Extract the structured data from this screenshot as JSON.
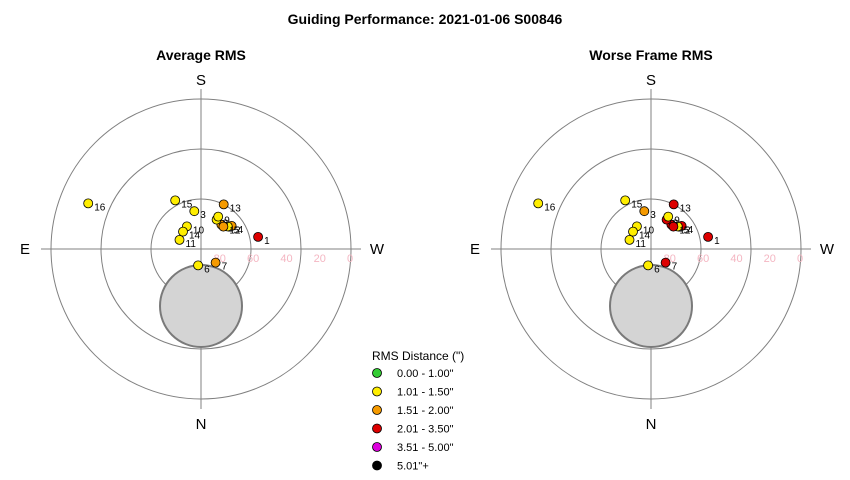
{
  "page_title": "Guiding Performance: 2021-01-06 S00846",
  "directions": {
    "top": "S",
    "bottom": "N",
    "left": "E",
    "right": "W"
  },
  "legend": {
    "title": "RMS Distance (\")",
    "entries": [
      {
        "label": "0.00 - 1.00\"",
        "color": "#33cc33"
      },
      {
        "label": "1.01 - 1.50\"",
        "color": "#ffee00"
      },
      {
        "label": "1.51 - 2.00\"",
        "color": "#f59a00"
      },
      {
        "label": "2.01 - 3.50\"",
        "color": "#dd0000"
      },
      {
        "label": "3.51 - 5.00\"",
        "color": "#dd00dd"
      },
      {
        "label": "5.01\"+",
        "color": "#000000"
      }
    ]
  },
  "chart_data": [
    {
      "type": "scatter",
      "title": "Average RMS",
      "r_axis": {
        "ticks": [
          "0",
          "20",
          "40",
          "60",
          "80"
        ],
        "range": [
          0,
          90
        ]
      },
      "points": [
        {
          "label": "1",
          "az": 258,
          "alt": 55,
          "color": "#dd0000"
        },
        {
          "label": "2",
          "az": 220,
          "alt": 71,
          "color": "#f59a00"
        },
        {
          "label": "3",
          "az": 170,
          "alt": 67,
          "color": "#ffee00"
        },
        {
          "label": "4",
          "az": 233,
          "alt": 67,
          "color": "#f59a00"
        },
        {
          "label": "5",
          "az": 230,
          "alt": 69,
          "color": "#ffee00"
        },
        {
          "label": "6",
          "az": 10,
          "alt": 80,
          "color": "#ffee00"
        },
        {
          "label": "7",
          "az": 313,
          "alt": 78,
          "color": "#f59a00"
        },
        {
          "label": "8",
          "az": 208,
          "alt": 70,
          "color": "#ffee00"
        },
        {
          "label": "9",
          "az": 208,
          "alt": 68,
          "color": "#ffee00"
        },
        {
          "label": "10",
          "az": 148,
          "alt": 74,
          "color": "#ffee00"
        },
        {
          "label": "11",
          "az": 113,
          "alt": 76,
          "color": "#ffee00"
        },
        {
          "label": "12",
          "az": 225,
          "alt": 71,
          "color": "#f59a00"
        },
        {
          "label": "13",
          "az": 207,
          "alt": 60,
          "color": "#f59a00"
        },
        {
          "label": "14",
          "az": 134,
          "alt": 75,
          "color": "#ffee00"
        },
        {
          "label": "15",
          "az": 152,
          "alt": 57,
          "color": "#ffee00"
        },
        {
          "label": "16",
          "az": 112,
          "alt": 17,
          "color": "#ffee00"
        }
      ]
    },
    {
      "type": "scatter",
      "title": "Worse Frame RMS",
      "r_axis": {
        "ticks": [
          "0",
          "20",
          "40",
          "60",
          "80"
        ],
        "range": [
          0,
          90
        ]
      },
      "points": [
        {
          "label": "1",
          "az": 258,
          "alt": 55,
          "color": "#dd0000"
        },
        {
          "label": "2",
          "az": 220,
          "alt": 71,
          "color": "#dd0000"
        },
        {
          "label": "3",
          "az": 170,
          "alt": 67,
          "color": "#f59a00"
        },
        {
          "label": "4",
          "az": 233,
          "alt": 67,
          "color": "#dd0000"
        },
        {
          "label": "5",
          "az": 230,
          "alt": 69,
          "color": "#ffee00"
        },
        {
          "label": "6",
          "az": 10,
          "alt": 80,
          "color": "#ffee00"
        },
        {
          "label": "7",
          "az": 313,
          "alt": 78,
          "color": "#dd0000"
        },
        {
          "label": "8",
          "az": 208,
          "alt": 70,
          "color": "#dd0000"
        },
        {
          "label": "9",
          "az": 208,
          "alt": 68,
          "color": "#ffee00"
        },
        {
          "label": "10",
          "az": 148,
          "alt": 74,
          "color": "#ffee00"
        },
        {
          "label": "11",
          "az": 113,
          "alt": 76,
          "color": "#ffee00"
        },
        {
          "label": "12",
          "az": 225,
          "alt": 71,
          "color": "#dd0000"
        },
        {
          "label": "13",
          "az": 207,
          "alt": 60,
          "color": "#dd0000"
        },
        {
          "label": "14",
          "az": 134,
          "alt": 75,
          "color": "#ffee00"
        },
        {
          "label": "15",
          "az": 152,
          "alt": 57,
          "color": "#ffee00"
        },
        {
          "label": "16",
          "az": 112,
          "alt": 17,
          "color": "#ffee00"
        }
      ]
    }
  ]
}
